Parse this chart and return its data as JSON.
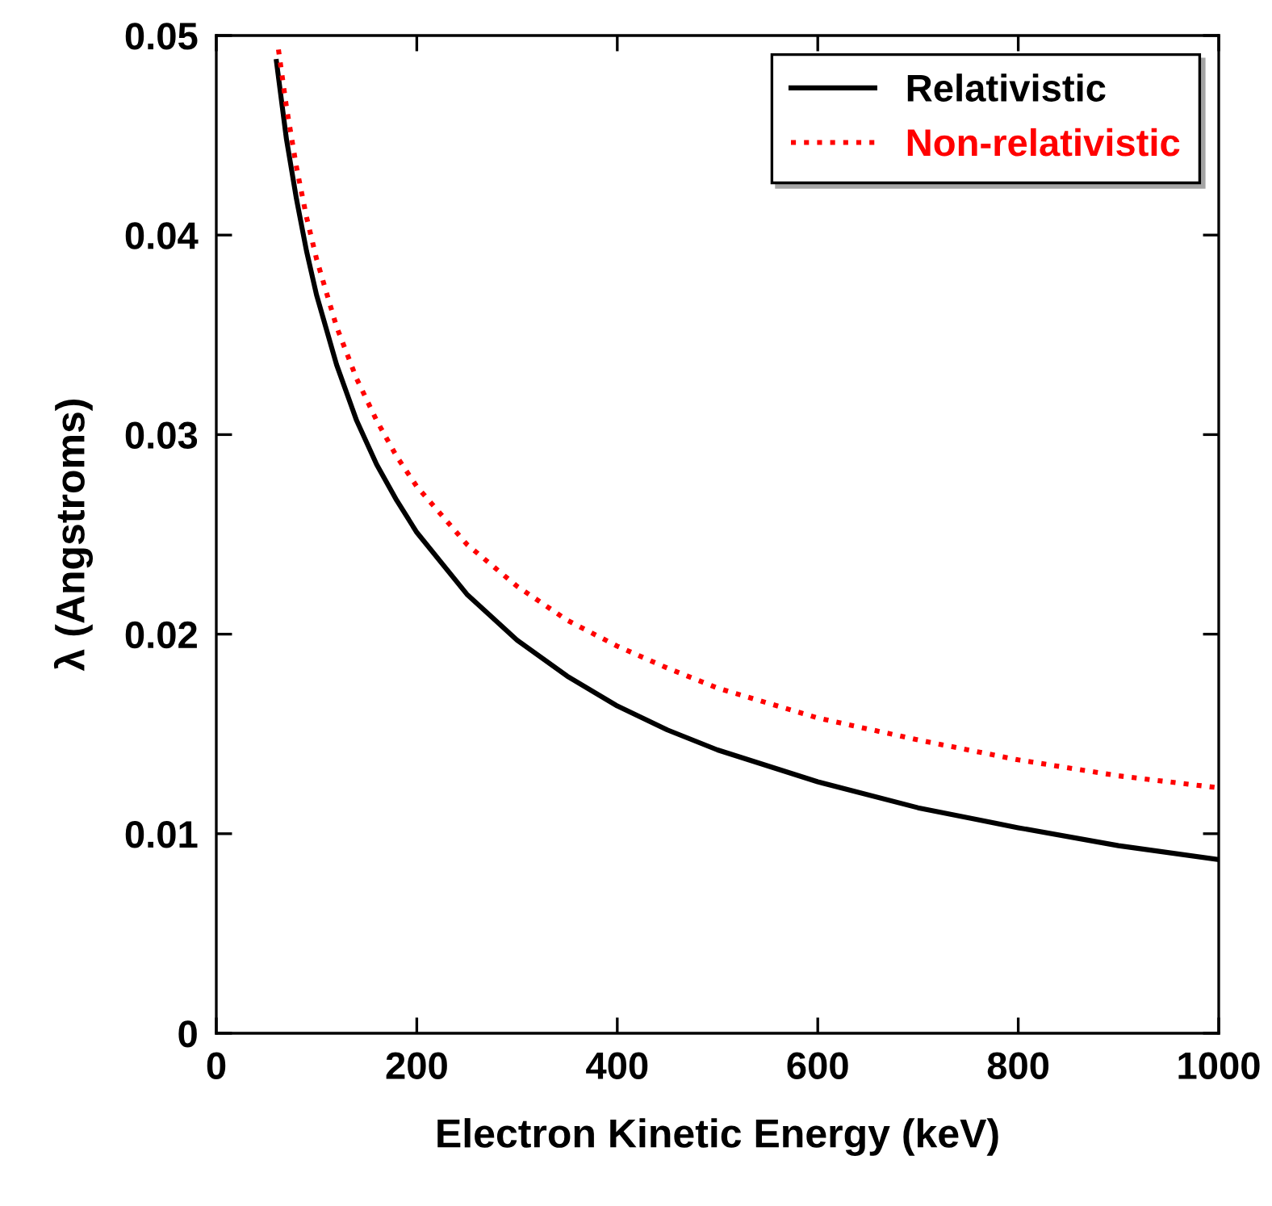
{
  "chart_data": {
    "type": "line",
    "xlabel": "Electron Kinetic Energy (keV)",
    "ylabel": "λ (Angstroms)",
    "xlim": [
      0,
      1000
    ],
    "xticks": [
      0,
      200,
      400,
      600,
      800,
      1000
    ],
    "ylim": [
      0,
      0.05
    ],
    "yticks": [
      0,
      0.01,
      0.02,
      0.03,
      0.04,
      0.05
    ],
    "grid": false,
    "legend": "top right",
    "marker": "none",
    "series": [
      {
        "name": "Relativistic",
        "color": "#000000",
        "line_style": "solid",
        "x": [
          60,
          70,
          80,
          90,
          100,
          120,
          140,
          160,
          180,
          200,
          250,
          300,
          350,
          400,
          450,
          500,
          600,
          700,
          800,
          900,
          1000
        ],
        "values": [
          0.0487,
          0.0448,
          0.0418,
          0.0392,
          0.037,
          0.0335,
          0.0307,
          0.0285,
          0.0267,
          0.0251,
          0.022,
          0.0197,
          0.0179,
          0.0164,
          0.0152,
          0.0142,
          0.0126,
          0.0113,
          0.0103,
          0.0094,
          0.0087
        ]
      },
      {
        "name": "Non-relativistic",
        "color": "#ff0000",
        "line_style": "dotted",
        "x": [
          62,
          70,
          80,
          90,
          100,
          120,
          140,
          160,
          180,
          200,
          250,
          300,
          350,
          400,
          450,
          500,
          600,
          700,
          800,
          900,
          1000
        ],
        "values": [
          0.0493,
          0.0464,
          0.0434,
          0.0409,
          0.0388,
          0.0354,
          0.0328,
          0.0307,
          0.0289,
          0.0274,
          0.0245,
          0.0224,
          0.0207,
          0.0194,
          0.0183,
          0.0173,
          0.0158,
          0.0147,
          0.0137,
          0.0129,
          0.0123
        ]
      }
    ]
  }
}
